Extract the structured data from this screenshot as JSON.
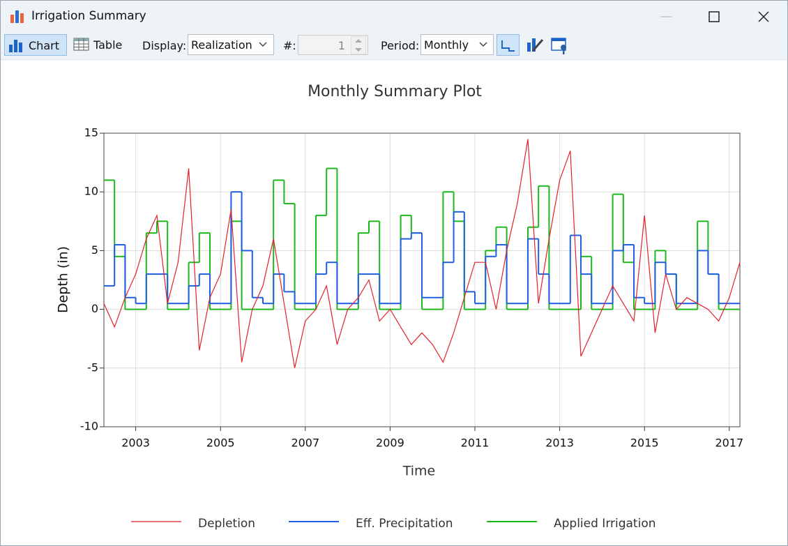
{
  "window": {
    "title": "Irrigation Summary"
  },
  "toolbar": {
    "chart": "Chart",
    "table": "Table",
    "display_label": "Display:",
    "display_value": "Realization",
    "count_label": "#:",
    "count_value": 1,
    "period_label": "Period:",
    "period_value": "Monthly"
  },
  "chart_data": {
    "type": "line",
    "title": "Monthly Summary Plot",
    "x_label": "Time",
    "y_label": "Depth (in)",
    "x": [
      2002.25,
      2002.5,
      2002.75,
      2003,
      2003.25,
      2003.5,
      2003.75,
      2004,
      2004.25,
      2004.5,
      2004.75,
      2005,
      2005.25,
      2005.5,
      2005.75,
      2006,
      2006.25,
      2006.5,
      2006.75,
      2007,
      2007.25,
      2007.5,
      2007.75,
      2008,
      2008.25,
      2008.5,
      2008.75,
      2009,
      2009.25,
      2009.5,
      2009.75,
      2010,
      2010.25,
      2010.5,
      2010.75,
      2011,
      2011.25,
      2011.5,
      2011.75,
      2012,
      2012.25,
      2012.5,
      2012.75,
      2013,
      2013.25,
      2013.5,
      2013.75,
      2014,
      2014.25,
      2014.5,
      2014.75,
      2015,
      2015.25,
      2015.5,
      2015.75,
      2016,
      2016.25,
      2016.5,
      2016.75,
      2017,
      2017.25
    ],
    "series": [
      {
        "name": "Depletion",
        "color": "#e3212b",
        "step": false,
        "values": [
          0.5,
          -1.5,
          1,
          3,
          6,
          8,
          0.5,
          4,
          12,
          -3.5,
          1,
          3,
          8.5,
          -4.5,
          0,
          2,
          6,
          0.5,
          -5,
          -1,
          0,
          2,
          -3,
          0,
          1,
          2.5,
          -1,
          0,
          -1.5,
          -3,
          -2,
          -3,
          -4.5,
          -2,
          1,
          4,
          4,
          0,
          5,
          9,
          14.5,
          0.5,
          6,
          11,
          13.5,
          -4,
          -2,
          0,
          2,
          0.5,
          -1,
          8,
          -2,
          3,
          0,
          1,
          0.5,
          0,
          -1,
          1,
          4
        ]
      },
      {
        "name": "Eff. Precipitation",
        "color": "#1f5fe0",
        "step": true,
        "values": [
          2,
          5.5,
          1,
          0.5,
          3,
          3,
          0.5,
          0.5,
          2,
          3,
          0.5,
          0.5,
          10,
          5,
          1,
          0.5,
          3,
          1.5,
          0.5,
          0.5,
          3,
          4,
          0.5,
          0.5,
          3,
          3,
          0.5,
          0.5,
          6,
          6.5,
          1,
          1,
          4,
          8.3,
          1.5,
          0.5,
          4.5,
          5.5,
          0.5,
          0.5,
          6,
          3,
          0.5,
          0.5,
          6.3,
          3,
          0.5,
          0.5,
          5,
          5.5,
          1,
          0.5,
          4,
          3,
          0.5,
          0.5,
          5,
          3,
          0.5,
          0.5,
          0.5
        ]
      },
      {
        "name": "Applied Irrigation",
        "color": "#1cb81c",
        "step": true,
        "values": [
          11,
          4.5,
          0,
          0,
          6.5,
          7.5,
          0,
          0,
          4,
          6.5,
          0,
          0,
          7.5,
          0,
          0,
          0,
          11,
          9,
          0,
          0,
          8,
          12,
          0,
          0,
          6.5,
          7.5,
          0,
          0,
          8,
          6.5,
          0,
          0,
          10,
          7.5,
          0,
          0,
          5,
          7,
          0,
          0,
          7,
          10.5,
          0,
          0,
          0,
          4.5,
          0,
          0,
          9.8,
          4,
          0,
          0,
          5,
          3,
          0,
          0,
          7.5,
          3,
          0,
          0,
          0
        ]
      }
    ],
    "xlim": [
      2002.25,
      2017.25
    ],
    "xticks": [
      2003,
      2005,
      2007,
      2009,
      2011,
      2013,
      2015,
      2017
    ],
    "ylim": [
      -10,
      15
    ],
    "yticks": [
      -10,
      -5,
      0,
      5,
      10,
      15
    ],
    "grid": true,
    "legend": "bottom"
  }
}
